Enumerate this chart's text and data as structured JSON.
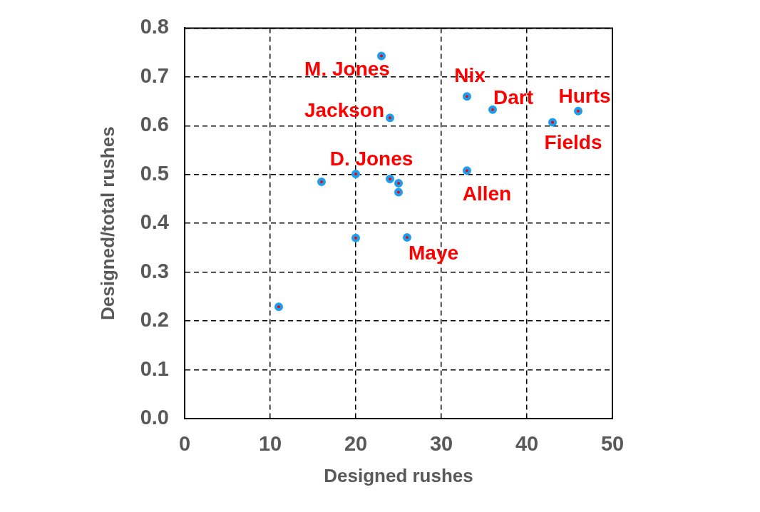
{
  "chart_data": {
    "type": "scatter",
    "xlabel": "Designed rushes",
    "ylabel": "Designed/total rushes",
    "x": [
      11,
      16,
      20,
      20,
      23,
      24,
      24,
      25,
      25,
      26,
      33,
      33,
      36,
      43,
      46
    ],
    "series": [
      {
        "color": "#1a9ff0",
        "values": [
          0.229,
          0.485,
          0.501,
          0.37,
          0.743,
          0.616,
          0.491,
          0.482,
          0.464,
          0.371,
          0.66,
          0.508,
          0.633,
          0.607,
          0.63
        ]
      }
    ],
    "xlim": [
      0,
      50
    ],
    "ylim": [
      0,
      0.8
    ],
    "xticks": [
      0,
      10,
      20,
      30,
      40,
      50
    ],
    "yticks": [
      {
        "value": 0,
        "label": "0.0"
      },
      0.1,
      0.2,
      0.3,
      0.4,
      0.5,
      0.6,
      0.7,
      0.8
    ],
    "grid": true,
    "marker": "circle",
    "annotations": [
      {
        "text": "M. Jones",
        "x": 23,
        "y": 0.743
      },
      {
        "text": "Jackson",
        "x": 24,
        "y": 0.616
      },
      {
        "text": "D. Jones",
        "x": 20,
        "y": 0.501
      },
      {
        "text": "Nix",
        "x": 33,
        "y": 0.66
      },
      {
        "text": "Dart",
        "x": 36,
        "y": 0.633
      },
      {
        "text": "Hurts",
        "x": 46,
        "y": 0.63
      },
      {
        "text": "Fields",
        "x": 43,
        "y": 0.607
      },
      {
        "text": "Allen",
        "x": 33,
        "y": 0.508
      },
      {
        "text": "Maye",
        "x": 26,
        "y": 0.371
      }
    ]
  }
}
